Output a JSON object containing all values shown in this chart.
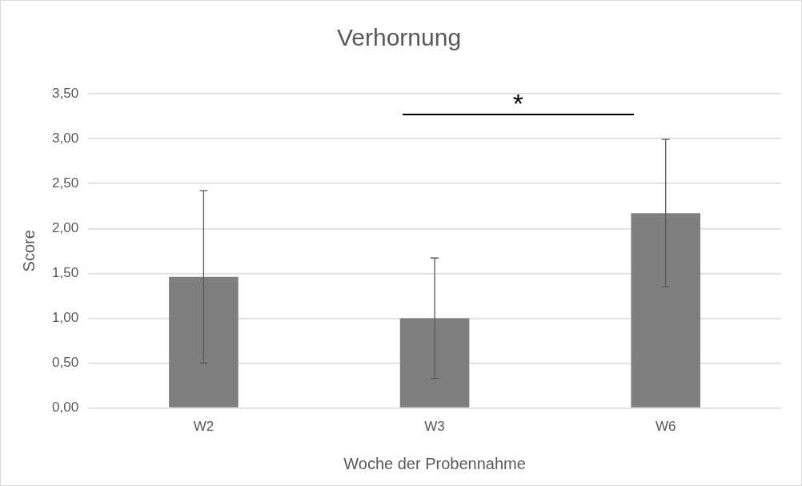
{
  "chart_data": {
    "type": "bar",
    "title": "Verhornung",
    "xlabel": "Woche der Probennahme",
    "ylabel": "Score",
    "categories": [
      "W2",
      "W3",
      "W6"
    ],
    "values": [
      1.46,
      1.0,
      2.17
    ],
    "errors": [
      0.96,
      0.67,
      0.82
    ],
    "color": "#7f7f7f",
    "ylim": [
      0,
      3.5
    ],
    "yticks": [
      {
        "value": 0,
        "label": "0,00"
      },
      {
        "value": 0.5,
        "label": "0,50"
      },
      {
        "value": 1,
        "label": "1,00"
      },
      {
        "value": 1.5,
        "label": "1,50"
      },
      {
        "value": 2,
        "label": "2,00"
      },
      {
        "value": 2.5,
        "label": "2,50"
      },
      {
        "value": 3,
        "label": "3,00"
      },
      {
        "value": 3.5,
        "label": "3,50"
      }
    ],
    "grid": "y",
    "legend": false,
    "annotations": [
      "*"
    ]
  }
}
